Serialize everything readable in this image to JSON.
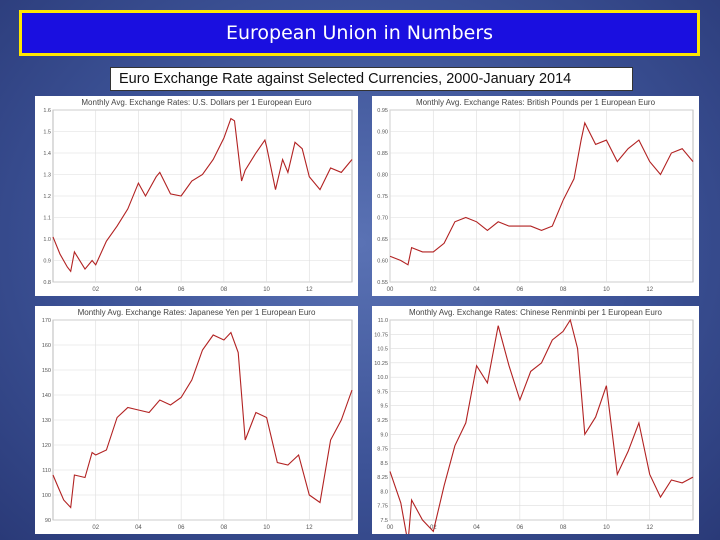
{
  "header": {
    "title": "European Union in Numbers",
    "subtitle": "Euro Exchange Rate against Selected Currencies, 2000-January 2014"
  },
  "colors": {
    "line": "#b22222",
    "title_bg": "#1a0fe0",
    "title_border": "#ffe600"
  },
  "chart_data": [
    {
      "type": "line",
      "title": "Monthly Avg. Exchange Rates: U.S. Dollars per 1 European Euro",
      "ylim": [
        0.8,
        1.6
      ],
      "yticks": [
        "0.8",
        "0.9",
        "1.0",
        "1.1",
        "1.2",
        "1.3",
        "1.4",
        "1.5",
        "1.6"
      ],
      "xticks": [
        "02",
        "04",
        "06",
        "08",
        "10",
        "12"
      ],
      "xlim": [
        2000.0,
        2014.0
      ],
      "x": [
        2000.0,
        2000.33,
        2000.67,
        2000.83,
        2001.0,
        2001.5,
        2001.83,
        2002.0,
        2002.5,
        2003.0,
        2003.5,
        2004.0,
        2004.33,
        2004.83,
        2005.0,
        2005.5,
        2006.0,
        2006.5,
        2007.0,
        2007.5,
        2008.0,
        2008.33,
        2008.5,
        2008.83,
        2009.0,
        2009.5,
        2009.92,
        2010.0,
        2010.42,
        2010.75,
        2011.0,
        2011.33,
        2011.67,
        2012.0,
        2012.5,
        2013.0,
        2013.5,
        2014.0
      ],
      "values": [
        1.01,
        0.93,
        0.87,
        0.85,
        0.94,
        0.86,
        0.9,
        0.88,
        0.99,
        1.06,
        1.14,
        1.26,
        1.2,
        1.29,
        1.31,
        1.21,
        1.2,
        1.27,
        1.3,
        1.37,
        1.47,
        1.56,
        1.55,
        1.27,
        1.32,
        1.4,
        1.46,
        1.43,
        1.23,
        1.37,
        1.31,
        1.45,
        1.42,
        1.29,
        1.23,
        1.33,
        1.31,
        1.37
      ]
    },
    {
      "type": "line",
      "title": "Monthly Avg. Exchange Rates: British Pounds per 1 European Euro",
      "ylim": [
        0.55,
        0.95
      ],
      "yticks": [
        "0.55",
        "0.60",
        "0.65",
        "0.70",
        "0.75",
        "0.80",
        "0.85",
        "0.90",
        "0.95"
      ],
      "xticks": [
        "00",
        "02",
        "04",
        "06",
        "08",
        "10",
        "12"
      ],
      "xlim": [
        2000.0,
        2014.0
      ],
      "x": [
        2000.0,
        2000.5,
        2000.83,
        2001.0,
        2001.5,
        2002.0,
        2002.5,
        2003.0,
        2003.5,
        2004.0,
        2004.5,
        2005.0,
        2005.5,
        2006.0,
        2006.5,
        2007.0,
        2007.5,
        2008.0,
        2008.5,
        2008.83,
        2009.0,
        2009.5,
        2010.0,
        2010.5,
        2011.0,
        2011.5,
        2012.0,
        2012.5,
        2013.0,
        2013.5,
        2014.0
      ],
      "values": [
        0.61,
        0.6,
        0.59,
        0.63,
        0.62,
        0.62,
        0.64,
        0.69,
        0.7,
        0.69,
        0.67,
        0.69,
        0.68,
        0.68,
        0.68,
        0.67,
        0.68,
        0.74,
        0.79,
        0.88,
        0.92,
        0.87,
        0.88,
        0.83,
        0.86,
        0.88,
        0.83,
        0.8,
        0.85,
        0.86,
        0.83
      ]
    },
    {
      "type": "line",
      "title": "Monthly Avg. Exchange Rates: Japanese Yen per 1 European Euro",
      "ylim": [
        90,
        170
      ],
      "yticks": [
        "90",
        "100",
        "110",
        "120",
        "130",
        "140",
        "150",
        "160",
        "170"
      ],
      "xticks": [
        "02",
        "04",
        "06",
        "08",
        "10",
        "12"
      ],
      "xlim": [
        2000.0,
        2014.0
      ],
      "x": [
        2000.0,
        2000.25,
        2000.5,
        2000.83,
        2001.0,
        2001.5,
        2001.83,
        2002.0,
        2002.5,
        2003.0,
        2003.5,
        2004.0,
        2004.5,
        2005.0,
        2005.5,
        2006.0,
        2006.5,
        2007.0,
        2007.5,
        2008.0,
        2008.33,
        2008.67,
        2009.0,
        2009.5,
        2010.0,
        2010.5,
        2011.0,
        2011.5,
        2012.0,
        2012.5,
        2013.0,
        2013.5,
        2014.0
      ],
      "values": [
        108,
        103,
        98,
        95,
        108,
        107,
        117,
        116,
        118,
        131,
        135,
        134,
        133,
        138,
        136,
        139,
        146,
        158,
        164,
        162,
        165,
        157,
        122,
        133,
        131,
        113,
        112,
        116,
        100,
        97,
        122,
        130,
        142
      ]
    },
    {
      "type": "line",
      "title": "Monthly Avg. Exchange Rates: Chinese Renminbi per 1 European Euro",
      "ylim": [
        7.5,
        11.0
      ],
      "yticks": [
        "7.5",
        "7.75",
        "8.0",
        "8.25",
        "8.5",
        "8.75",
        "9.0",
        "9.25",
        "9.5",
        "9.75",
        "10.0",
        "10.25",
        "10.5",
        "10.75",
        "11.0"
      ],
      "xticks": [
        "00",
        "02",
        "04",
        "06",
        "08",
        "10",
        "12"
      ],
      "xlim": [
        2000.0,
        2014.0
      ],
      "x": [
        2000.0,
        2000.5,
        2000.83,
        2001.0,
        2001.5,
        2002.0,
        2002.5,
        2003.0,
        2003.5,
        2004.0,
        2004.5,
        2005.0,
        2005.5,
        2006.0,
        2006.5,
        2007.0,
        2007.5,
        2008.0,
        2008.33,
        2008.67,
        2009.0,
        2009.5,
        2010.0,
        2010.5,
        2011.0,
        2011.5,
        2012.0,
        2012.5,
        2013.0,
        2013.5,
        2014.0
      ],
      "values": [
        8.35,
        7.8,
        7.1,
        7.85,
        7.5,
        7.3,
        8.1,
        8.8,
        9.2,
        10.2,
        9.9,
        10.9,
        10.2,
        9.6,
        10.1,
        10.25,
        10.65,
        10.8,
        11.0,
        10.5,
        9.0,
        9.3,
        9.85,
        8.3,
        8.7,
        9.2,
        8.3,
        7.9,
        8.2,
        8.15,
        8.25
      ]
    }
  ]
}
